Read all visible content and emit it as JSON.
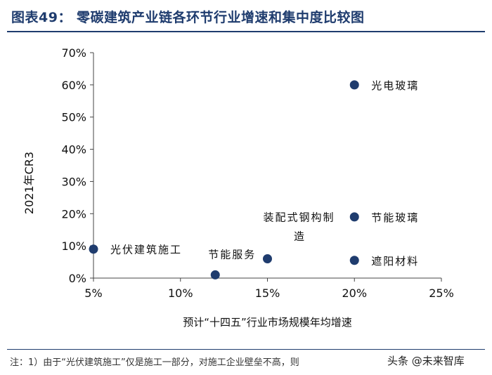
{
  "header": {
    "title": "图表49：   零碳建筑产业链各环节行业增速和集中度比较图"
  },
  "chart_data": {
    "type": "scatter",
    "title": "图表49：   零碳建筑产业链各环节行业增速和集中度比较图",
    "xlabel": "预计“十四五”行业市场规模年均增速",
    "ylabel": "2021年CR3",
    "xlim": [
      0.05,
      0.25
    ],
    "ylim": [
      0,
      0.7
    ],
    "x_ticks": [
      {
        "value": 0.05,
        "label": "5%"
      },
      {
        "value": 0.1,
        "label": "10%"
      },
      {
        "value": 0.15,
        "label": "15%"
      },
      {
        "value": 0.2,
        "label": "20%"
      },
      {
        "value": 0.25,
        "label": "25%"
      }
    ],
    "y_ticks": [
      {
        "value": 0.0,
        "label": "0%"
      },
      {
        "value": 0.1,
        "label": "10%"
      },
      {
        "value": 0.2,
        "label": "20%"
      },
      {
        "value": 0.3,
        "label": "30%"
      },
      {
        "value": 0.4,
        "label": "40%"
      },
      {
        "value": 0.5,
        "label": "50%"
      },
      {
        "value": 0.6,
        "label": "60%"
      },
      {
        "value": 0.7,
        "label": "70%"
      }
    ],
    "grid": false,
    "marker_color": "#1f3c6e",
    "points": [
      {
        "label": "光伏建筑施工",
        "x": 0.05,
        "y": 0.09,
        "label_pos": "right"
      },
      {
        "label": "节能服务",
        "x": 0.12,
        "y": 0.01,
        "label_pos": "above-right"
      },
      {
        "label": "装配式钢构制造",
        "x": 0.15,
        "y": 0.06,
        "label_pos": "above"
      },
      {
        "label": "遮阳材料",
        "x": 0.2,
        "y": 0.055,
        "label_pos": "right"
      },
      {
        "label": "节能玻璃",
        "x": 0.2,
        "y": 0.19,
        "label_pos": "right"
      },
      {
        "label": "光电玻璃",
        "x": 0.2,
        "y": 0.6,
        "label_pos": "right"
      }
    ]
  },
  "footnote": {
    "text": "注：1）由于“光伏建筑施工”仅是施工一部分，对施工企业壁垒不高，则"
  },
  "watermark": {
    "text": "头条 @未来智库"
  }
}
